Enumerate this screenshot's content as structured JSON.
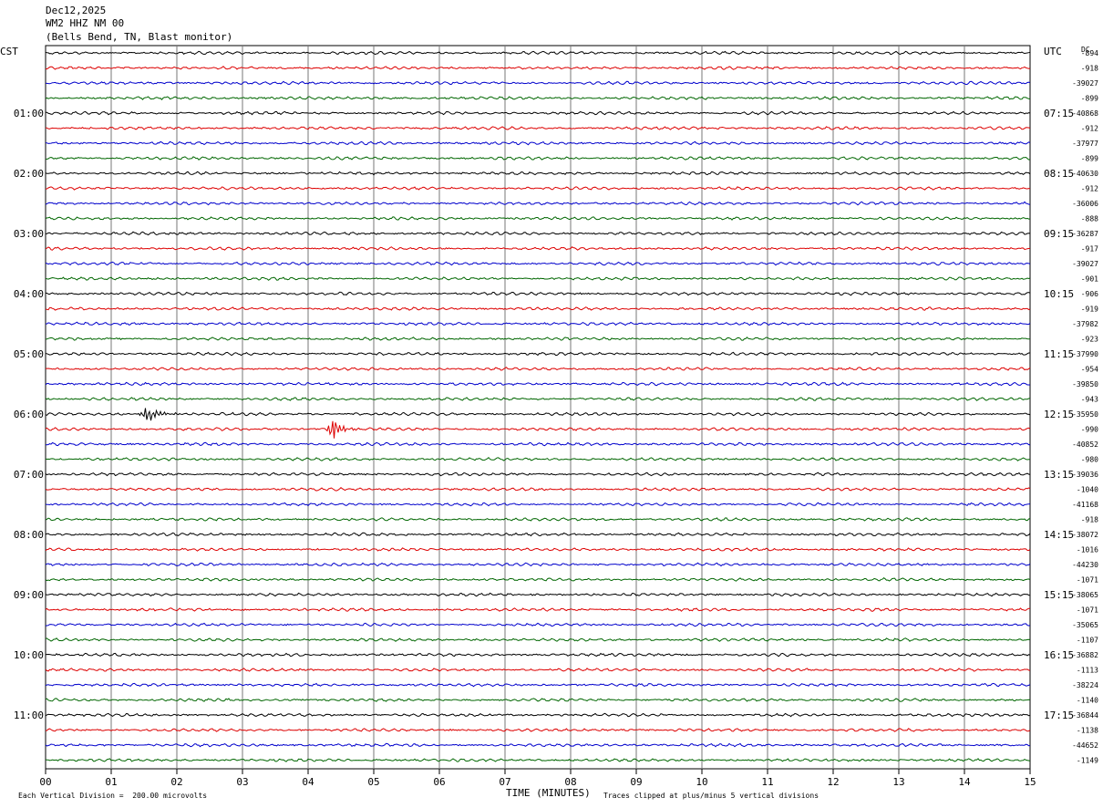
{
  "header": {
    "date": "Dec12,2025",
    "station": "WM2 HHZ NM 00",
    "location": "(Bells Bend, TN, Blast monitor)"
  },
  "left_tz": "CST",
  "right_tz": "UTC",
  "dc_label": "DC",
  "footer": {
    "scale": "Each Vertical Division =  200.00 microvolts",
    "xlabel": "TIME (MINUTES)",
    "clip_note": "Traces clipped at plus/minus 5 vertical divisions"
  },
  "trace_colors": [
    "#000000",
    "#dd0000",
    "#0000cc",
    "#006600"
  ],
  "chart_data": {
    "type": "line",
    "title": "",
    "xlabel": "TIME (MINUTES)",
    "ylabel": "",
    "xlim": [
      0,
      15
    ],
    "x_ticks": [
      "00",
      "01",
      "02",
      "03",
      "04",
      "05",
      "06",
      "07",
      "08",
      "09",
      "10",
      "11",
      "12",
      "13",
      "14",
      "15"
    ],
    "rows": 48,
    "hour_labels_left": [
      "01:00",
      "02:00",
      "03:00",
      "04:00",
      "05:00",
      "06:00",
      "07:00",
      "08:00",
      "09:00",
      "10:00",
      "11:00"
    ],
    "hour_labels_right": [
      "07:15",
      "08:15",
      "09:15",
      "10:15",
      "11:15",
      "12:15",
      "13:15",
      "14:15",
      "15:15",
      "16:15",
      "17:15"
    ],
    "dc_offsets": [
      "-894",
      "-918",
      "-39027",
      "-899",
      "-40868",
      "-912",
      "-37977",
      "-899",
      "-40630",
      "-912",
      "-36006",
      "-888",
      "-36287",
      "-917",
      "-39027",
      "-901",
      "-906",
      "-919",
      "-37982",
      "-923",
      "-37990",
      "-954",
      "-39850",
      "-943",
      "-35950",
      "-990",
      "-40852",
      "-980",
      "-39036",
      "-1040",
      "-41168",
      "-918",
      "-38072",
      "-1016",
      "-44230",
      "-1071",
      "-38065",
      "-1071",
      "-35065",
      "-1107",
      "-36882",
      "-1113",
      "-38224",
      "-1140",
      "-36844",
      "-1138",
      "-44652",
      "-1149"
    ],
    "events": [
      {
        "row": 24,
        "minute": 1.55,
        "amplitude": "large"
      },
      {
        "row": 25,
        "minute": 4.38,
        "amplitude": "large"
      }
    ]
  }
}
